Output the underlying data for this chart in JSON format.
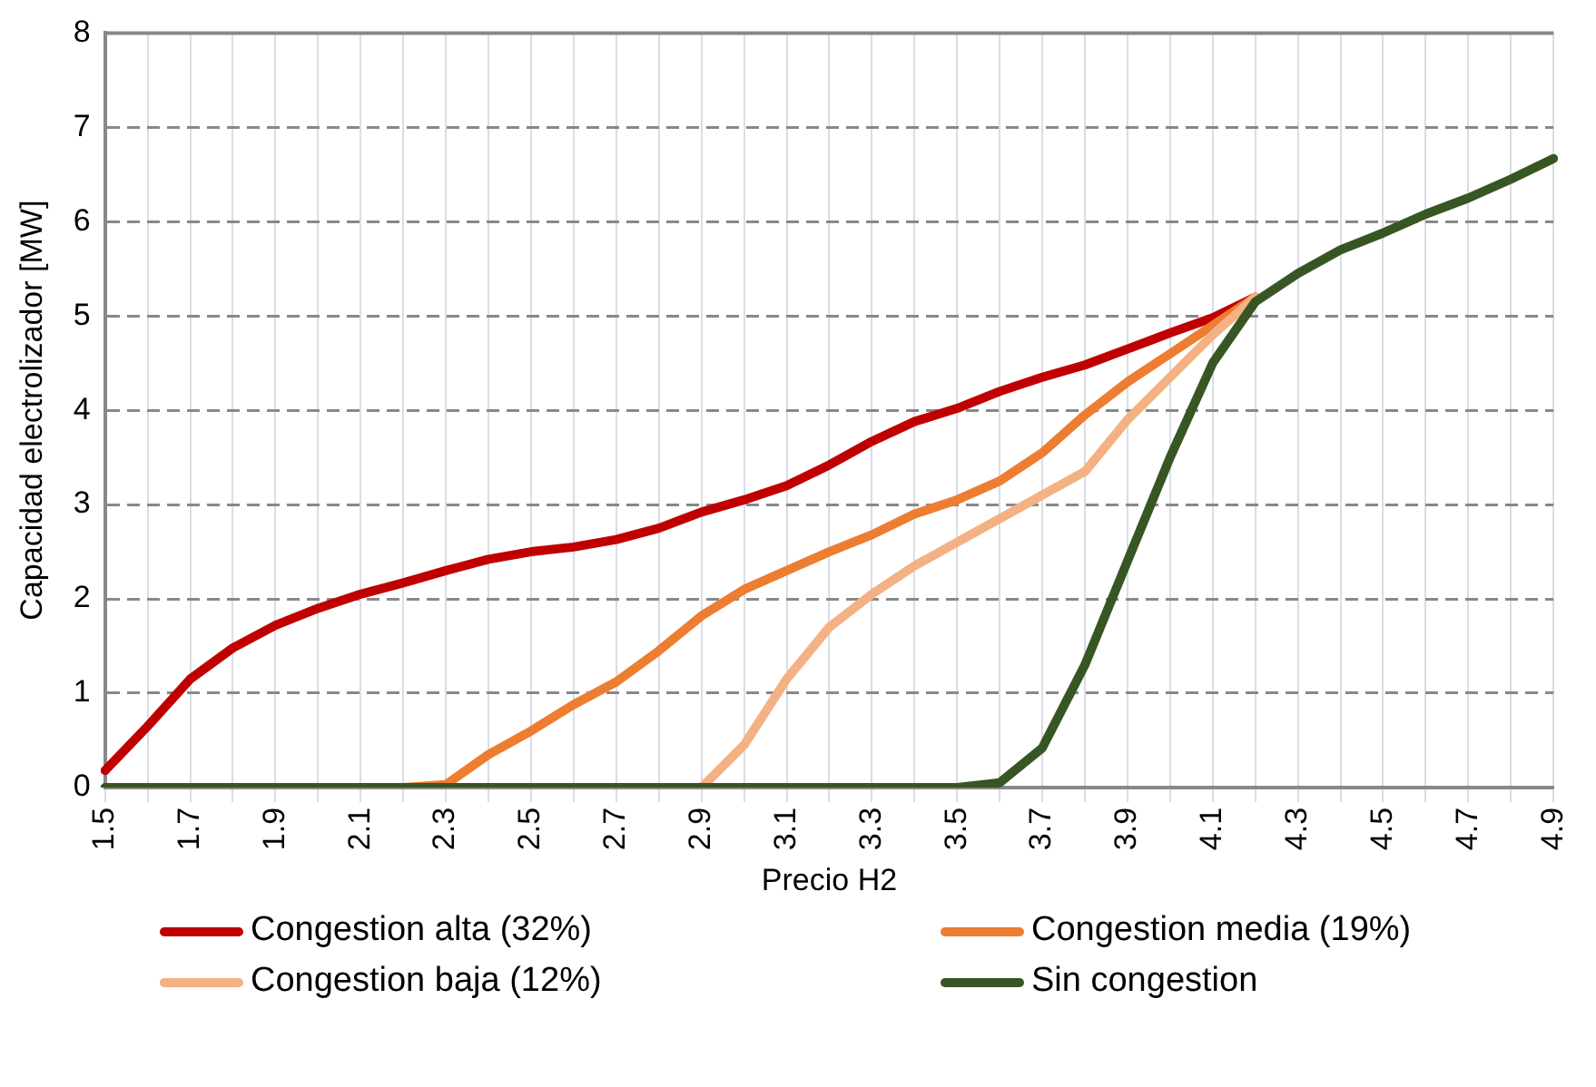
{
  "chart_data": {
    "type": "line",
    "xlabel": "Precio H2",
    "ylabel": "Capacidad electrolizador [MW]",
    "categories": [
      "1.5",
      null,
      "1.7",
      null,
      "1.9",
      null,
      "2.1",
      null,
      "2.3",
      null,
      "2.5",
      null,
      "2.7",
      null,
      "2.9",
      null,
      "3.1",
      null,
      "3.3",
      null,
      "3.5",
      null,
      "3.7",
      null,
      "3.9",
      null,
      "4.1",
      null,
      "4.3",
      null,
      "4.5",
      null,
      "4.7",
      null,
      "4.9"
    ],
    "series": [
      {
        "name": "Congestion alta (32%)",
        "color": "#c00000",
        "values": [
          0.18,
          0.65,
          1.15,
          1.48,
          1.72,
          1.9,
          2.05,
          2.17,
          2.3,
          2.42,
          2.5,
          2.55,
          2.63,
          2.75,
          2.92,
          3.05,
          3.2,
          3.42,
          3.67,
          3.88,
          4.02,
          4.2,
          4.35,
          4.48,
          4.65,
          4.82,
          4.98,
          5.2,
          null,
          null,
          null,
          null,
          null,
          null,
          null
        ]
      },
      {
        "name": "Congestion media (19%)",
        "color": "#ed7d31",
        "values": [
          null,
          null,
          null,
          null,
          null,
          null,
          null,
          0,
          0.03,
          0.35,
          0.6,
          0.88,
          1.12,
          1.45,
          1.82,
          2.1,
          2.3,
          2.5,
          2.68,
          2.9,
          3.05,
          3.25,
          3.55,
          3.95,
          4.3,
          4.6,
          4.9,
          5.2,
          null,
          null,
          null,
          null,
          null,
          null,
          null
        ]
      },
      {
        "name": "Congestion baja (12%)",
        "color": "#f4b183",
        "values": [
          null,
          null,
          null,
          null,
          null,
          null,
          null,
          null,
          null,
          null,
          null,
          null,
          null,
          null,
          0,
          0.45,
          1.15,
          1.7,
          2.05,
          2.35,
          2.6,
          2.85,
          3.1,
          3.35,
          3.9,
          4.35,
          4.8,
          5.2,
          null,
          null,
          null,
          null,
          null,
          null,
          null
        ]
      },
      {
        "name": "Sin congestion",
        "color": "#375623",
        "values": [
          0,
          0,
          0,
          0,
          0,
          0,
          0,
          0,
          0,
          0,
          0,
          0,
          0,
          0,
          0,
          0,
          0,
          0,
          0,
          0,
          0,
          0.05,
          0.42,
          1.3,
          2.4,
          3.5,
          4.5,
          5.15,
          5.45,
          5.7,
          5.88,
          6.08,
          6.25,
          6.45,
          6.67
        ]
      }
    ],
    "ylim": [
      0,
      8
    ],
    "yticks": [
      0,
      1,
      2,
      3,
      4,
      5,
      6,
      7,
      8
    ],
    "grid": true,
    "legend": "bottom",
    "marker": "none",
    "line_style": "solid"
  }
}
